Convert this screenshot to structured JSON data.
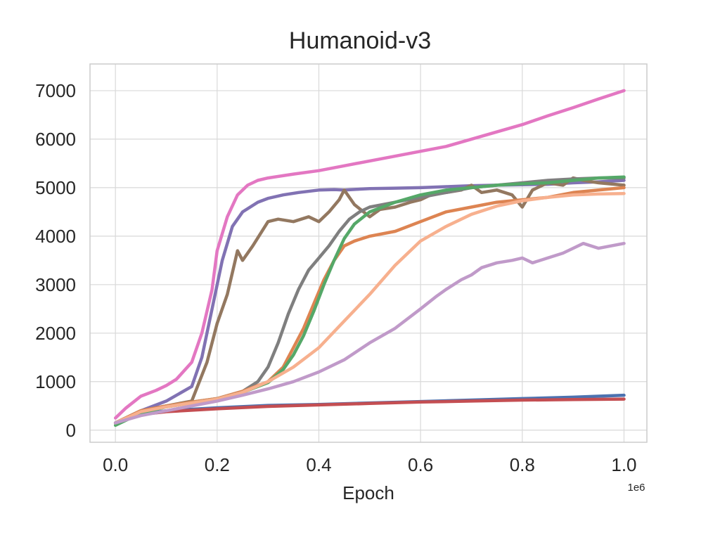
{
  "chart_data": {
    "type": "line",
    "title": "Humanoid-v3",
    "xlabel": "Epoch",
    "ylabel": "",
    "x_offset_label": "1e6",
    "xlim": [
      -0.05,
      1.045
    ],
    "ylim": [
      -250,
      7550
    ],
    "xticks": [
      0.0,
      0.2,
      0.4,
      0.6,
      0.8,
      1.0
    ],
    "xtick_labels": [
      "0.0",
      "0.2",
      "0.4",
      "0.6",
      "0.8",
      "1.0"
    ],
    "yticks": [
      0,
      1000,
      2000,
      3000,
      4000,
      5000,
      6000,
      7000
    ],
    "ytick_labels": [
      "0",
      "1000",
      "2000",
      "3000",
      "4000",
      "5000",
      "6000",
      "7000"
    ],
    "grid": true,
    "legend": "none",
    "series": [
      {
        "color": "#4c72b0",
        "x": [
          0,
          0.05,
          0.1,
          0.2,
          0.3,
          0.4,
          0.5,
          0.6,
          0.7,
          0.8,
          0.9,
          1.0
        ],
        "y": [
          150,
          330,
          400,
          460,
          510,
          530,
          560,
          590,
          620,
          650,
          680,
          720
        ]
      },
      {
        "color": "#c44e52",
        "x": [
          0,
          0.05,
          0.1,
          0.2,
          0.3,
          0.4,
          0.5,
          0.6,
          0.7,
          0.8,
          0.9,
          1.0
        ],
        "y": [
          150,
          320,
          380,
          440,
          490,
          520,
          550,
          580,
          600,
          620,
          630,
          640
        ]
      },
      {
        "color": "#e377c2",
        "x": [
          0,
          0.02,
          0.05,
          0.08,
          0.1,
          0.12,
          0.15,
          0.17,
          0.19,
          0.2,
          0.22,
          0.24,
          0.26,
          0.28,
          0.3,
          0.35,
          0.4,
          0.45,
          0.5,
          0.55,
          0.6,
          0.65,
          0.7,
          0.75,
          0.8,
          0.85,
          0.9,
          0.95,
          1.0
        ],
        "y": [
          250,
          450,
          700,
          820,
          920,
          1050,
          1400,
          2000,
          2900,
          3700,
          4400,
          4850,
          5050,
          5150,
          5200,
          5280,
          5350,
          5450,
          5550,
          5650,
          5750,
          5850,
          6000,
          6150,
          6300,
          6480,
          6650,
          6830,
          7000
        ]
      },
      {
        "color": "#8172b3",
        "x": [
          0,
          0.05,
          0.1,
          0.15,
          0.17,
          0.19,
          0.21,
          0.23,
          0.25,
          0.28,
          0.3,
          0.33,
          0.36,
          0.4,
          0.43,
          0.45,
          0.48,
          0.5,
          0.55,
          0.6,
          0.65,
          0.7,
          0.75,
          0.8,
          0.85,
          0.9,
          0.95,
          1.0
        ],
        "y": [
          150,
          400,
          600,
          900,
          1500,
          2500,
          3500,
          4200,
          4500,
          4700,
          4780,
          4850,
          4900,
          4950,
          4960,
          4950,
          4970,
          4980,
          4990,
          5000,
          5020,
          5040,
          5050,
          5060,
          5070,
          5100,
          5120,
          5150
        ]
      },
      {
        "color": "#937860",
        "x": [
          0,
          0.05,
          0.1,
          0.15,
          0.18,
          0.2,
          0.22,
          0.24,
          0.25,
          0.27,
          0.3,
          0.32,
          0.35,
          0.38,
          0.4,
          0.42,
          0.44,
          0.45,
          0.47,
          0.5,
          0.52,
          0.55,
          0.58,
          0.6,
          0.62,
          0.65,
          0.68,
          0.7,
          0.72,
          0.75,
          0.78,
          0.8,
          0.82,
          0.85,
          0.88,
          0.9,
          0.92,
          0.95,
          1.0
        ],
        "y": [
          150,
          400,
          500,
          600,
          1400,
          2200,
          2800,
          3700,
          3500,
          3800,
          4300,
          4350,
          4300,
          4400,
          4300,
          4500,
          4750,
          4950,
          4650,
          4400,
          4550,
          4600,
          4700,
          4750,
          4850,
          4900,
          4950,
          5050,
          4900,
          4950,
          4850,
          4600,
          4950,
          5100,
          5050,
          5200,
          5150,
          5100,
          5050
        ]
      },
      {
        "color": "#7f7f7f",
        "x": [
          0,
          0.05,
          0.1,
          0.15,
          0.2,
          0.25,
          0.28,
          0.3,
          0.32,
          0.34,
          0.36,
          0.38,
          0.4,
          0.42,
          0.44,
          0.46,
          0.48,
          0.5,
          0.55,
          0.6,
          0.65,
          0.7,
          0.75,
          0.8,
          0.85,
          0.9,
          0.95,
          1.0
        ],
        "y": [
          150,
          400,
          500,
          580,
          650,
          800,
          1000,
          1300,
          1800,
          2400,
          2900,
          3300,
          3550,
          3800,
          4100,
          4350,
          4500,
          4600,
          4700,
          4800,
          4900,
          5000,
          5050,
          5100,
          5150,
          5180,
          5200,
          5200
        ]
      },
      {
        "color": "#dd8452",
        "x": [
          0,
          0.05,
          0.1,
          0.15,
          0.2,
          0.25,
          0.3,
          0.33,
          0.35,
          0.37,
          0.39,
          0.41,
          0.43,
          0.45,
          0.47,
          0.5,
          0.55,
          0.6,
          0.65,
          0.7,
          0.75,
          0.8,
          0.85,
          0.9,
          0.95,
          1.0
        ],
        "y": [
          150,
          400,
          500,
          580,
          650,
          800,
          1000,
          1300,
          1700,
          2100,
          2600,
          3100,
          3500,
          3800,
          3900,
          4000,
          4100,
          4300,
          4500,
          4600,
          4700,
          4750,
          4800,
          4900,
          4950,
          5000
        ]
      },
      {
        "color": "#55a868",
        "x": [
          0,
          0.05,
          0.1,
          0.15,
          0.2,
          0.25,
          0.3,
          0.33,
          0.35,
          0.37,
          0.39,
          0.41,
          0.43,
          0.45,
          0.47,
          0.5,
          0.55,
          0.6,
          0.65,
          0.7,
          0.75,
          0.8,
          0.85,
          0.9,
          0.95,
          1.0
        ],
        "y": [
          100,
          350,
          480,
          560,
          640,
          780,
          980,
          1250,
          1550,
          1950,
          2450,
          3000,
          3500,
          3950,
          4250,
          4500,
          4700,
          4850,
          4950,
          5000,
          5050,
          5080,
          5100,
          5150,
          5200,
          5220
        ]
      },
      {
        "color": "#f7b08e",
        "x": [
          0,
          0.05,
          0.1,
          0.15,
          0.2,
          0.25,
          0.3,
          0.35,
          0.4,
          0.45,
          0.5,
          0.55,
          0.6,
          0.65,
          0.7,
          0.75,
          0.8,
          0.85,
          0.9,
          0.95,
          1.0
        ],
        "y": [
          150,
          380,
          480,
          560,
          640,
          780,
          1000,
          1300,
          1700,
          2250,
          2800,
          3400,
          3900,
          4200,
          4450,
          4620,
          4730,
          4800,
          4850,
          4870,
          4880
        ]
      },
      {
        "color": "#c09ac9",
        "x": [
          0,
          0.05,
          0.1,
          0.15,
          0.2,
          0.25,
          0.3,
          0.35,
          0.4,
          0.45,
          0.5,
          0.55,
          0.6,
          0.63,
          0.65,
          0.68,
          0.7,
          0.72,
          0.75,
          0.78,
          0.8,
          0.82,
          0.85,
          0.88,
          0.9,
          0.92,
          0.95,
          1.0
        ],
        "y": [
          150,
          300,
          400,
          500,
          600,
          720,
          850,
          1000,
          1200,
          1450,
          1800,
          2100,
          2500,
          2750,
          2900,
          3100,
          3200,
          3350,
          3450,
          3500,
          3550,
          3450,
          3550,
          3650,
          3750,
          3850,
          3750,
          3850
        ]
      }
    ]
  }
}
